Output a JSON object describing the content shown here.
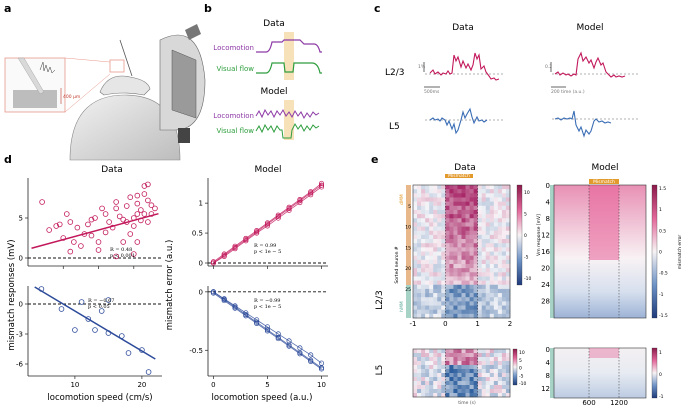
{
  "panels": {
    "a": {
      "letter": "a",
      "depth_label": "400 µm"
    },
    "b": {
      "letter": "b",
      "title_data": "Data",
      "title_model": "Model",
      "locomotion": "Locomotion",
      "visual_flow": "Visual flow"
    },
    "c": {
      "letter": "c",
      "title_data": "Data",
      "title_model": "Model",
      "row1": "L2/3",
      "row2": "L5",
      "scale_time_data": "500ms",
      "scale_resp_data": "1%",
      "scale_time_model": "200 time (a.u.)",
      "scale_resp_model": "0.2"
    },
    "d": {
      "letter": "d",
      "title_data": "Data",
      "title_model": "Model",
      "ylabel_data": "mismatch responses (mV)",
      "ylabel_model": "mismatch error (a.u.)",
      "xlabel_data": "locomotion speed (cm/s)",
      "xlabel_model": "locomotion speed (a.u.)",
      "stat_d1_r": "R = 0.48",
      "stat_d1_p": "p < 0.001",
      "stat_d2_r": "R = −0.67",
      "stat_d2_p": "p < 0.05",
      "stat_m1_r": "R = 0.99",
      "stat_m1_p": "p < 1e − 5",
      "stat_m2_r": "R = −0.99",
      "stat_m2_p": "p < 1e − 5"
    },
    "e": {
      "letter": "e",
      "title_data": "Data",
      "title_model": "Model",
      "mismatch": "Mismatch",
      "row1": "L2/3",
      "row2": "L5",
      "ylabel_data": "Sorted neuron #",
      "xlabel_time": "time (s)",
      "cbar_data_label": "Vm response [mV]",
      "cbar_model_label": "mismatch error",
      "dmm": "dMM",
      "hmm": "hMM"
    }
  },
  "chart_data": [
    {
      "type": "scatter",
      "id": "d-data-l23",
      "title": "Data",
      "xlabel": "locomotion speed (cm/s)",
      "ylabel": "mismatch responses (mV)",
      "xlim": [
        0,
        38
      ],
      "ylim": [
        -1,
        10
      ],
      "x": [
        4,
        6,
        8,
        10,
        11,
        12,
        13,
        14,
        15,
        16,
        17,
        18,
        19,
        20,
        21,
        22,
        22,
        23,
        24,
        25,
        25,
        26,
        27,
        27,
        28,
        28,
        29,
        29,
        30,
        30,
        31,
        31,
        31,
        32,
        32,
        33,
        33,
        34,
        34,
        35,
        35,
        36,
        25,
        30,
        33,
        20,
        18,
        12,
        9,
        31,
        34
      ],
      "y": [
        7,
        3.5,
        4,
        2.5,
        5.5,
        4.5,
        2,
        3.8,
        1.5,
        3,
        4.2,
        2.8,
        5,
        2,
        6.2,
        3.2,
        5.5,
        4.5,
        3.8,
        7,
        6.2,
        5.2,
        4.8,
        2,
        6.5,
        4.5,
        3,
        7.6,
        5,
        4,
        6.8,
        5.5,
        7.8,
        4.7,
        6,
        8,
        5.5,
        7.2,
        4.5,
        6.6,
        5.5,
        6.2,
        0.2,
        0.5,
        9,
        1,
        4.8,
        0.8,
        4.2,
        2,
        9.2
      ],
      "fit": {
        "slope": 0.12,
        "intercept": 1.1
      },
      "r": "R = 0.48",
      "p": "p < 0.001",
      "yticks": [
        0,
        5
      ],
      "xticks": [
        10,
        20,
        30
      ]
    },
    {
      "type": "scatter",
      "id": "d-data-l5",
      "xlabel": "locomotion speed (cm/s)",
      "xlim": [
        3,
        23
      ],
      "ylim": [
        -7.2,
        1.8
      ],
      "x": [
        5,
        8,
        10,
        11,
        13,
        14,
        15,
        15,
        17,
        18,
        20,
        21,
        12
      ],
      "y": [
        1.5,
        -0.5,
        -2.6,
        0.2,
        -2.6,
        -0.7,
        -2.9,
        0.4,
        -3.2,
        -4.9,
        -4.6,
        -6.8,
        -1.5
      ],
      "fit": {
        "slope": -0.4,
        "intercept": 3.3
      },
      "r": "R = −0.67",
      "p": "p < 0.05",
      "yticks": [
        -6,
        -3,
        0
      ],
      "xticks": [
        10,
        20
      ]
    },
    {
      "type": "scatter",
      "id": "d-model-l23",
      "title": "Model",
      "ylabel": "mismatch error (a.u.)",
      "xlim": [
        -0.5,
        10.6
      ],
      "ylim": [
        -0.05,
        1.42
      ],
      "x": [
        0,
        1,
        2,
        3,
        4,
        5,
        6,
        7,
        8,
        9,
        10
      ],
      "series": [
        {
          "name": "s1",
          "values": [
            0.0,
            0.13,
            0.26,
            0.39,
            0.52,
            0.65,
            0.78,
            0.91,
            1.04,
            1.17,
            1.3
          ]
        },
        {
          "name": "s2",
          "values": [
            0.02,
            0.15,
            0.28,
            0.41,
            0.54,
            0.67,
            0.8,
            0.93,
            1.06,
            1.19,
            1.33
          ]
        },
        {
          "name": "s3",
          "values": [
            0.0,
            0.11,
            0.24,
            0.37,
            0.5,
            0.62,
            0.75,
            0.88,
            1.01,
            1.14,
            1.27
          ]
        }
      ],
      "r": "R = 0.99",
      "p": "p < 1e − 5",
      "yticks": [
        0,
        0.5,
        1
      ],
      "xticks": [
        0,
        5,
        10
      ]
    },
    {
      "type": "scatter",
      "id": "d-model-l5",
      "xlabel": "locomotion speed (a.u.)",
      "xlim": [
        -0.5,
        10.6
      ],
      "ylim": [
        -0.72,
        0.05
      ],
      "x": [
        0,
        1,
        2,
        3,
        4,
        5,
        6,
        7,
        8,
        9,
        10
      ],
      "series": [
        {
          "name": "s1",
          "values": [
            0.0,
            -0.065,
            -0.13,
            -0.195,
            -0.26,
            -0.325,
            -0.39,
            -0.455,
            -0.52,
            -0.585,
            -0.65
          ]
        },
        {
          "name": "s2",
          "values": [
            -0.01,
            -0.075,
            -0.14,
            -0.205,
            -0.27,
            -0.335,
            -0.4,
            -0.465,
            -0.53,
            -0.595,
            -0.66
          ]
        },
        {
          "name": "s3",
          "values": [
            0.0,
            -0.06,
            -0.12,
            -0.18,
            -0.24,
            -0.3,
            -0.36,
            -0.42,
            -0.48,
            -0.54,
            -0.61
          ]
        }
      ],
      "r": "R = −0.99",
      "p": "p < 1e − 5",
      "yticks": [
        -0.5,
        0.0
      ],
      "xticks": [
        0,
        5,
        10
      ]
    },
    {
      "type": "heatmap",
      "id": "e-data-l23",
      "xlim": [
        -1,
        2
      ],
      "xticks": [
        -1,
        0,
        1,
        2
      ],
      "yticks": [
        5,
        10,
        15,
        20,
        25
      ],
      "neurons": 32,
      "cbar_ticks": [
        10,
        5,
        0,
        -5,
        -10
      ]
    },
    {
      "type": "heatmap",
      "id": "e-model-l23",
      "yticks": [
        0,
        4,
        8,
        12,
        16,
        20,
        24,
        28
      ],
      "cbar_ticks": [
        1.5,
        1.0,
        0.5,
        0.0,
        -0.5,
        -1.0,
        -1.5
      ]
    },
    {
      "type": "heatmap",
      "id": "e-data-l5",
      "xlim": [
        -1,
        2
      ],
      "cbar_ticks": [
        10,
        5,
        0,
        -5,
        -10
      ]
    },
    {
      "type": "heatmap",
      "id": "e-model-l5",
      "yticks": [
        0,
        4,
        8,
        12
      ],
      "xticks": [
        600,
        1200
      ],
      "cbar_ticks": [
        1,
        0,
        -1
      ]
    }
  ]
}
